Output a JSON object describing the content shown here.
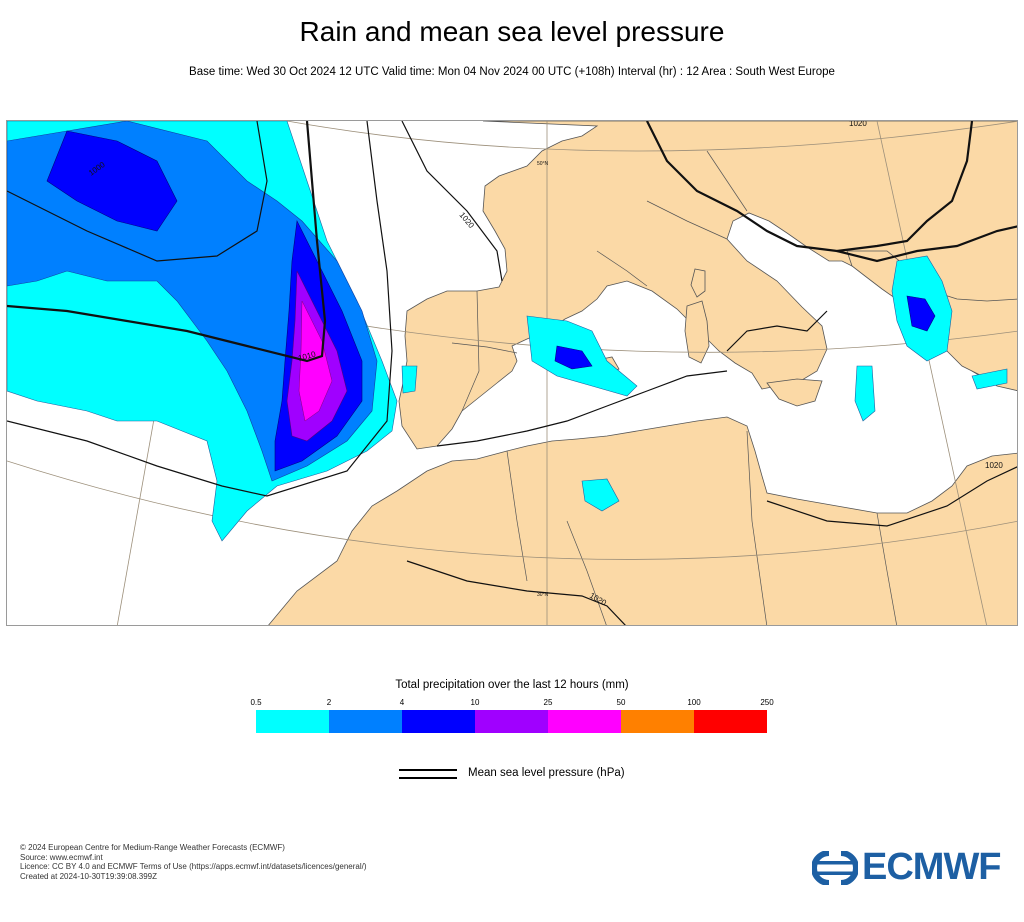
{
  "header": {
    "title": "Rain and mean sea level pressure",
    "subtitle": "Base time: Wed 30 Oct 2024 12 UTC Valid time: Mon 04 Nov 2024 00 UTC (+108h) Interval (hr) : 12 Area : South West Europe"
  },
  "map": {
    "isobar_labels": [
      "1000",
      "1020",
      "1020",
      "1020",
      "1020",
      "1010"
    ],
    "graticule_labels": [
      "50°N",
      "30°N"
    ],
    "colors": {
      "land": "#fbd9a6",
      "sea": "#ffffff",
      "isobar": "#000000"
    }
  },
  "legend": {
    "title": "Total precipitation over the last 12 hours (mm)",
    "ticks": [
      "0.5",
      "2",
      "4",
      "10",
      "25",
      "50",
      "100",
      "250"
    ],
    "colors": [
      "#00ffff",
      "#0080ff",
      "#0000ff",
      "#a000ff",
      "#ff00ff",
      "#ff8000",
      "#ff0000"
    ],
    "isobar_label": "Mean sea level pressure (hPa)"
  },
  "footer": {
    "lines": [
      "© 2024 European Centre for Medium-Range Weather Forecasts (ECMWF)",
      "Source: www.ecmwf.int",
      "Licence: CC BY 4.0 and ECMWF Terms of Use (https://apps.ecmwf.int/datasets/licences/general/)",
      "Created at 2024-10-30T19:39:08.399Z"
    ],
    "logo_text": "ECMWF",
    "logo_color": "#1d5fa3"
  }
}
